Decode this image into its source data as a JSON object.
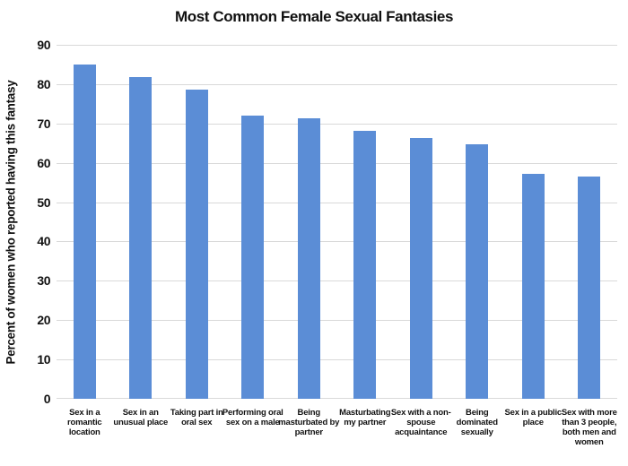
{
  "chart_data": {
    "type": "bar",
    "title": "Most Common Female Sexual Fantasies",
    "xlabel": "",
    "ylabel": "Percent of women who reported having this fantasy",
    "categories": [
      "Sex in a romantic location",
      "Sex in an unusual place",
      "Taking part in oral sex",
      "Performing oral sex on a male",
      "Being masturbated by partner",
      "Masturbating my partner",
      "Sex with a non-spouse acquaintance",
      "Being dominated sexually",
      "Sex in a public place",
      "Sex with more than 3 people, both men and women"
    ],
    "values": [
      84.9,
      81.7,
      78.5,
      72.1,
      71.4,
      68.1,
      66.3,
      64.6,
      57.3,
      56.5
    ],
    "ylim": [
      0,
      90
    ],
    "yticks": [
      0,
      10,
      20,
      30,
      40,
      50,
      60,
      70,
      80,
      90
    ],
    "grid": "horizontal",
    "legend": "none",
    "bar_color": "#5b8dd6",
    "gridline_color": "#d9d9d9",
    "text_color": "#111111",
    "background_color": "#ffffff"
  }
}
